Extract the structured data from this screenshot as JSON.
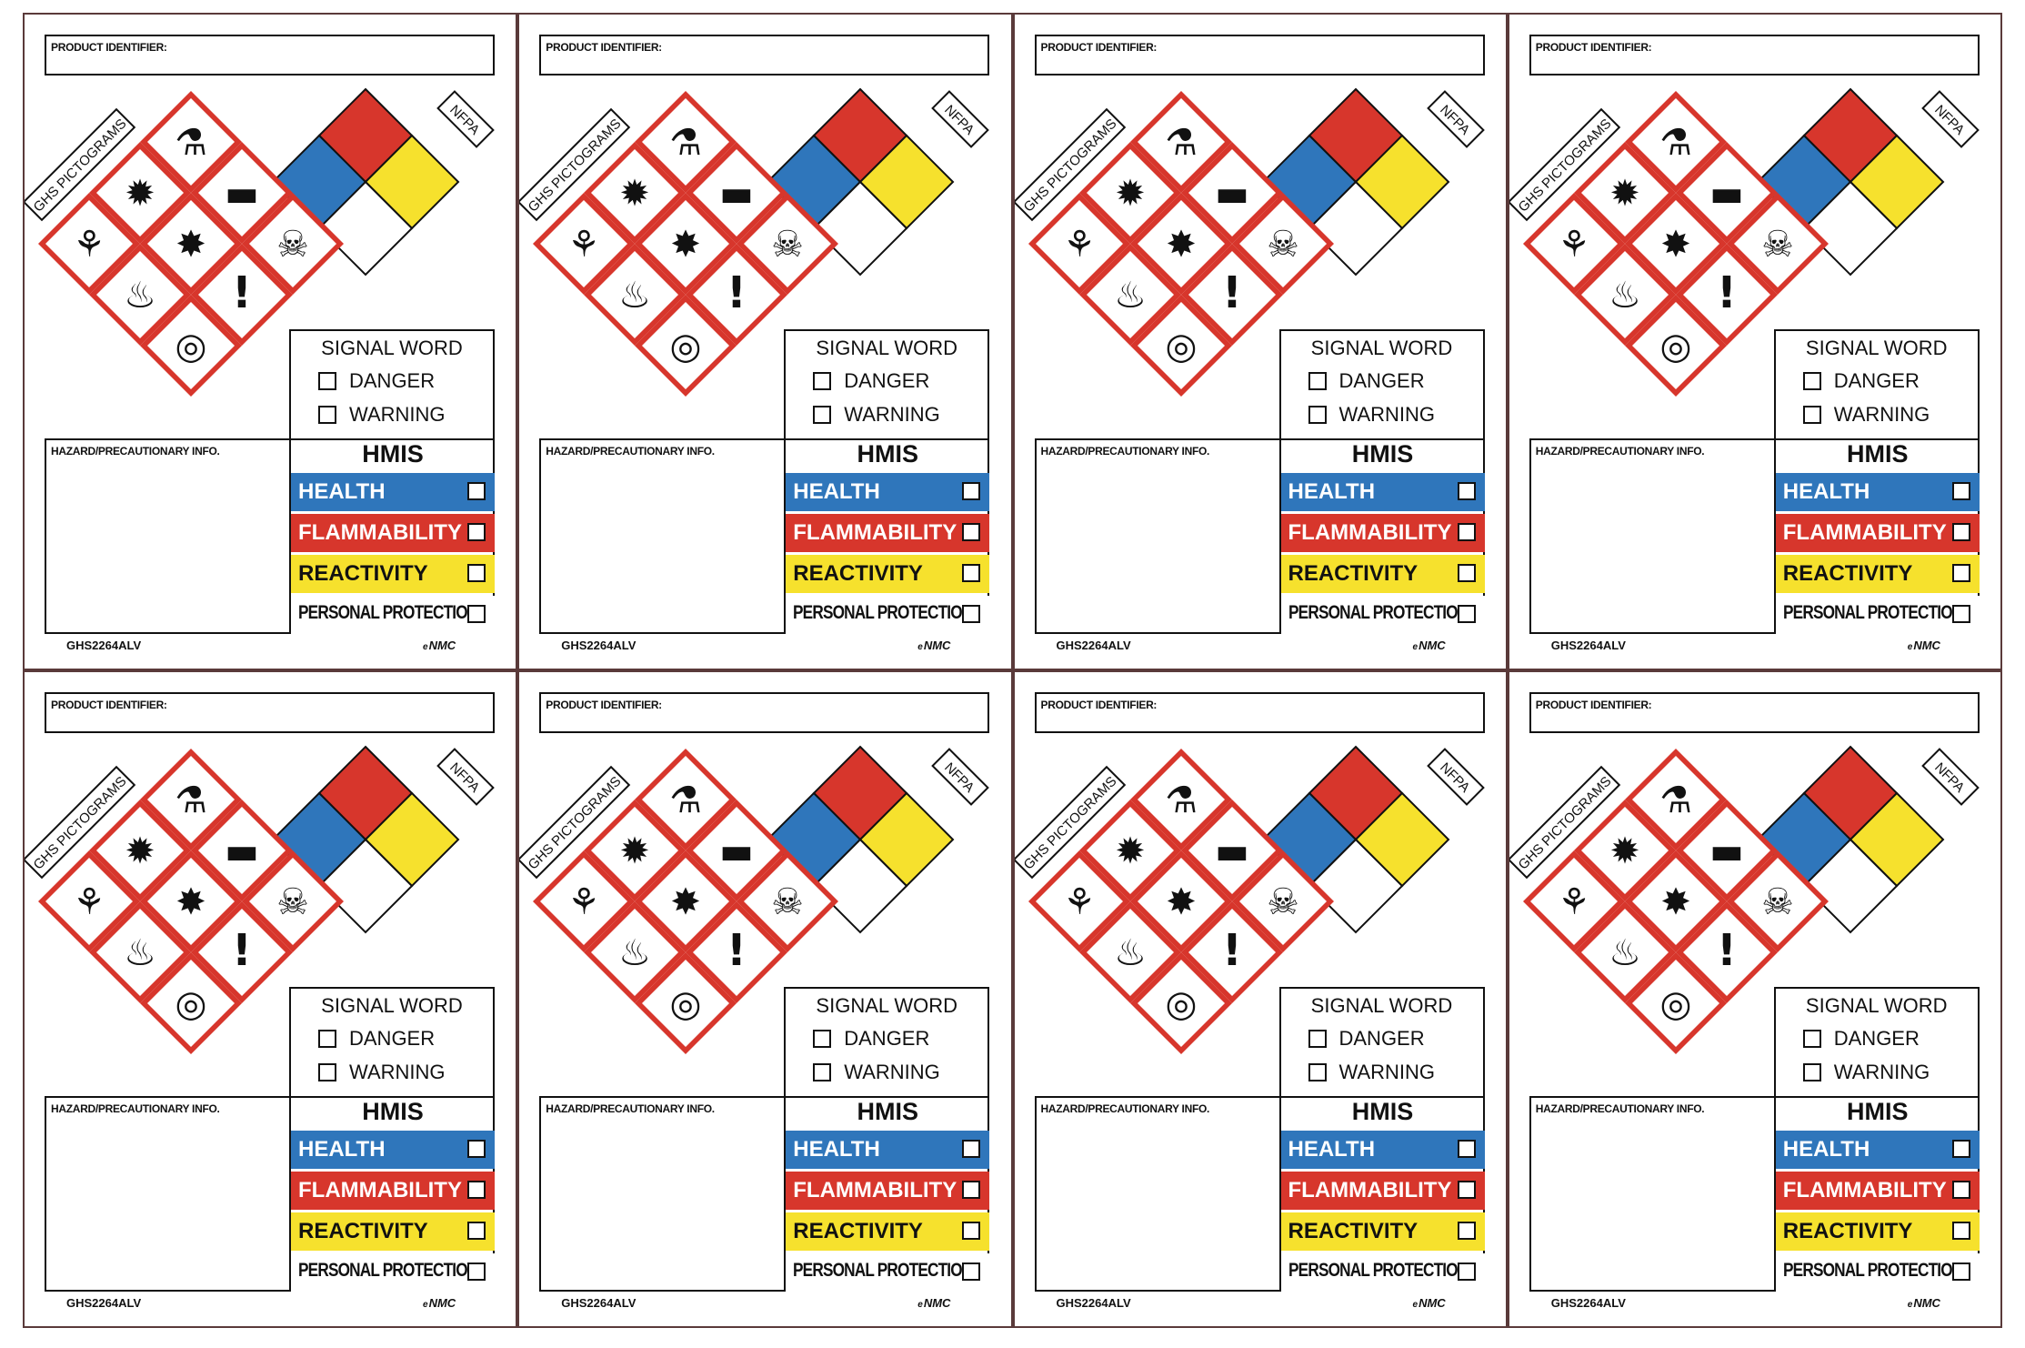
{
  "label": {
    "product_identifier": "PRODUCT IDENTIFIER:",
    "ghs_tag": "GHS PICTOGRAMS",
    "nfpa_tag": "NFPA",
    "signal_word": {
      "title": "SIGNAL WORD",
      "options": [
        "DANGER",
        "WARNING"
      ]
    },
    "hazard_info": "HAZARD/PRECAUTIONARY INFO.",
    "hmis": {
      "title": "HMIS",
      "rows": [
        "HEALTH",
        "FLAMMABILITY",
        "REACTIVITY",
        "PERSONAL PROTECTION"
      ]
    },
    "code": "GHS2264ALV",
    "brand": "NMC"
  },
  "colors": {
    "nfpa_top": "#d7362c",
    "nfpa_left": "#2f76bb",
    "nfpa_right": "#f6e12d",
    "nfpa_bottom": "#ffffff",
    "ghs_border": "#d7362c",
    "health": "#2f76bb",
    "flammability": "#d7362c",
    "reactivity": "#f6e12d"
  },
  "ghs_pictograms": [
    "corrosion-icon",
    "health-hazard-icon",
    "gas-cylinder-icon",
    "environment-icon",
    "exploding-bomb-icon",
    "skull-crossbones-icon",
    "flame-icon",
    "exclamation-icon",
    "flame-over-circle-icon"
  ],
  "sheet": {
    "rows": 2,
    "columns": 4,
    "label_count": 8
  }
}
